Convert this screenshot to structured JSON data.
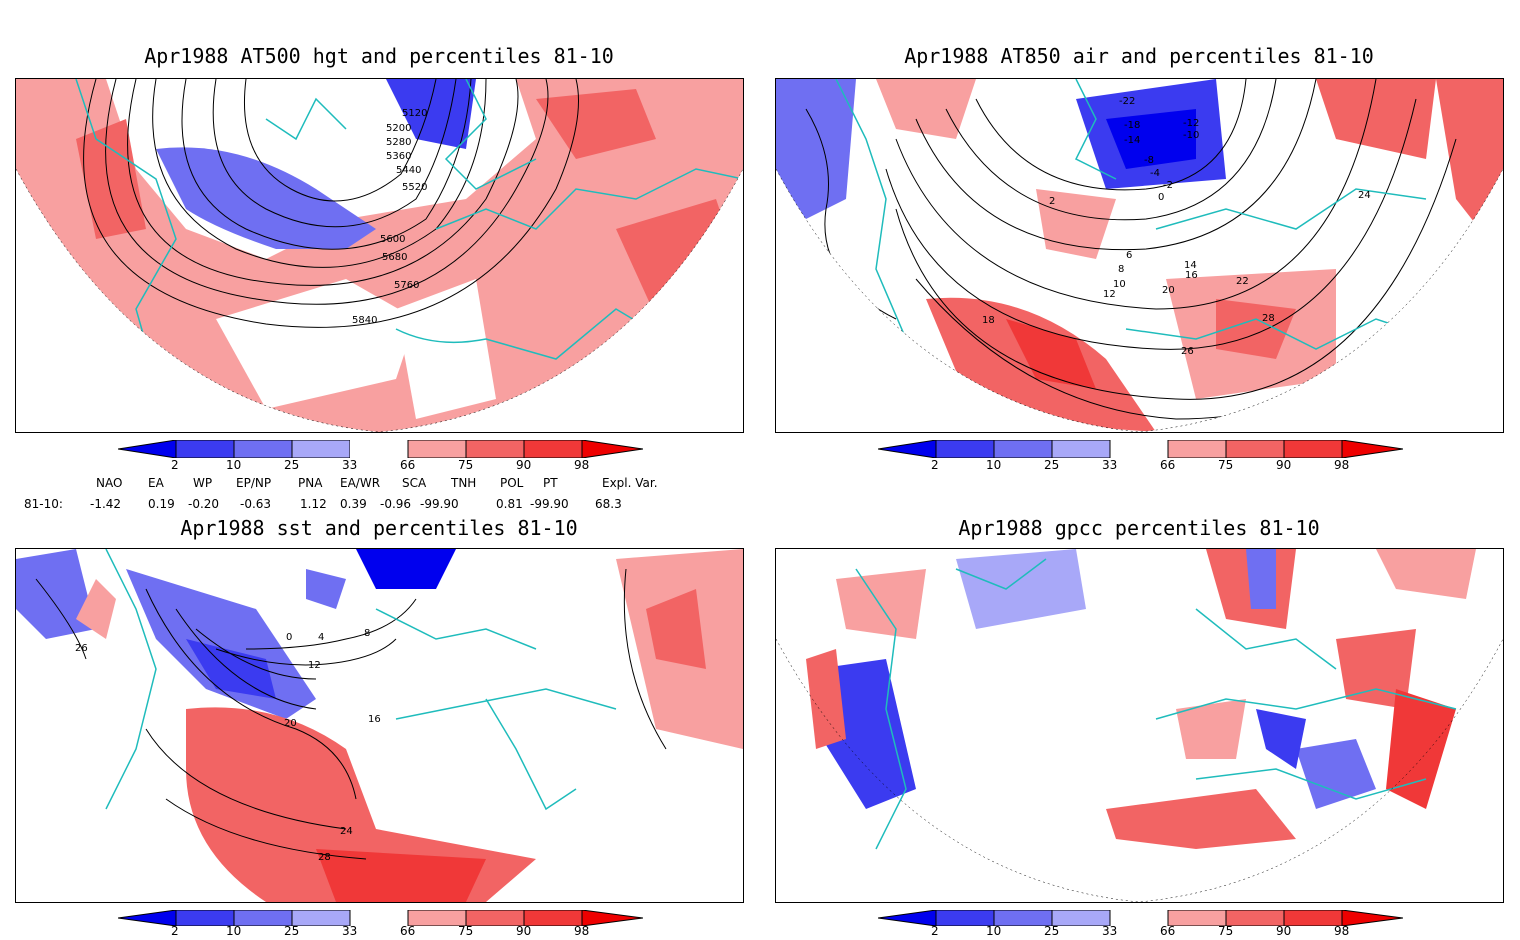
{
  "panels": {
    "hgt": {
      "title": "Apr1988 AT500 hgt and percentiles 81-10",
      "contour_labels": [
        "5120",
        "5200",
        "5280",
        "5360",
        "5440",
        "5520",
        "5600",
        "5680",
        "5760",
        "5840"
      ]
    },
    "air": {
      "title": "Apr1988 AT850 air and percentiles 81-10",
      "contour_labels": [
        "-22",
        "-18",
        "-14",
        "-12",
        "-10",
        "-8",
        "-4",
        "-2",
        "0",
        "2",
        "6",
        "8",
        "10",
        "12",
        "14",
        "16",
        "18",
        "20",
        "22",
        "24",
        "26",
        "28"
      ]
    },
    "sst": {
      "title": "Apr1988 sst and percentiles 81-10",
      "contour_labels": [
        "0",
        "4",
        "8",
        "12",
        "16",
        "20",
        "24",
        "26",
        "28"
      ]
    },
    "gpcc": {
      "title": "Apr1988 gpcc percentiles 81-10"
    }
  },
  "colorbar": {
    "labels": [
      "2",
      "10",
      "25",
      "33",
      "66",
      "75",
      "90",
      "98"
    ],
    "colors": [
      "#0000ee",
      "#3b3bf0",
      "#6f6ff2",
      "#a8a8f8",
      "#ffffff",
      "#f8a0a0",
      "#f26464",
      "#f03838",
      "#ee0000"
    ]
  },
  "indices": {
    "row_label": "81-10:",
    "names": [
      "NAO",
      "EA",
      "WP",
      "EP/NP",
      "PNA",
      "EA/WR",
      "SCA",
      "TNH",
      "POL",
      "PT",
      "Expl. Var."
    ],
    "values": [
      "-1.42",
      "0.19",
      "-0.20",
      "-0.63",
      "1.12",
      "0.39",
      "-0.96",
      "-99.90",
      "0.81",
      "-99.90",
      "68.3"
    ]
  },
  "colors": {
    "coast": "#1fbcbc",
    "warm": "#f08080",
    "cold": "#5050f0"
  }
}
